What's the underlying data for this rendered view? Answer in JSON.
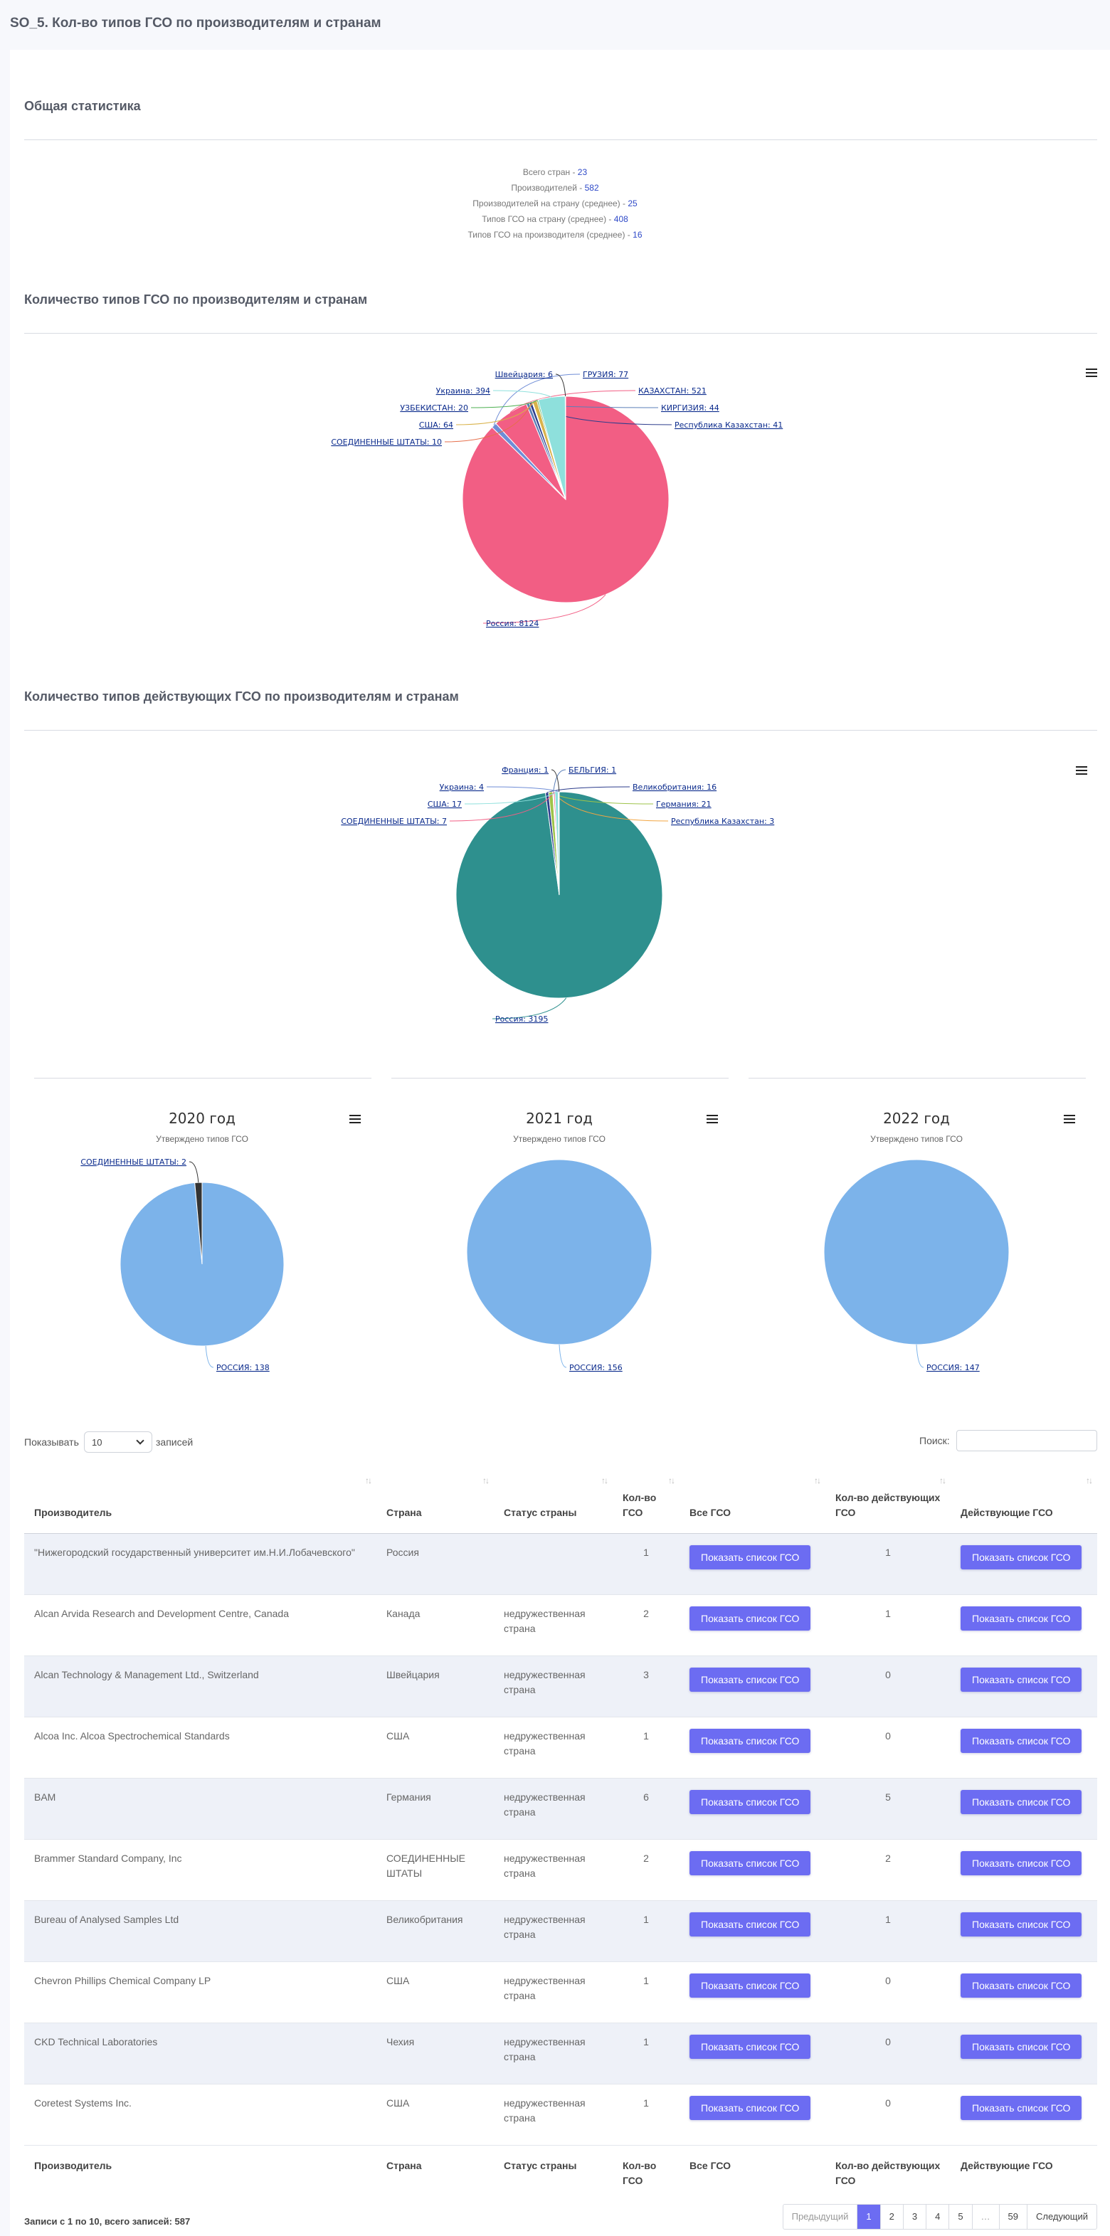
{
  "page": {
    "title": "SO_5. Кол-во типов ГСО по производителям и странам"
  },
  "stats": {
    "heading": "Общая статистика",
    "lines": [
      {
        "label": "Всего стран - ",
        "value": "23"
      },
      {
        "label": "Производителей - ",
        "value": "582"
      },
      {
        "label": "Производителей на страну (среднее) - ",
        "value": "25"
      },
      {
        "label": "Типов ГСО на страну (среднее) - ",
        "value": "408"
      },
      {
        "label": "Типов ГСО на производителя (среднее) - ",
        "value": "16"
      }
    ]
  },
  "colors": {
    "accent": "#6c6cf2",
    "russia_pie": "#f25e84",
    "russia_active_pie": "#2e908e",
    "year_pie": "#7cb3ea"
  },
  "chart_data": [
    {
      "type": "pie",
      "title": "Количество типов ГСО по производителям и странам",
      "slices": [
        {
          "label": "Россия",
          "value": 8124,
          "color": "#f25e84"
        },
        {
          "label": "ГРУЗИЯ",
          "value": 77,
          "color": "#6f8dd6"
        },
        {
          "label": "КАЗАХСТАН",
          "value": 521,
          "color": "#f25e84"
        },
        {
          "label": "КИРГИЗИЯ",
          "value": 44,
          "color": "#5b7fb8"
        },
        {
          "label": "Республика Казахстан",
          "value": 41,
          "color": "#2d3d8c"
        },
        {
          "label": "СОЕДИНЕННЫЕ ШТАТЫ",
          "value": 10,
          "color": "#e66e4a"
        },
        {
          "label": "США",
          "value": 64,
          "color": "#d9b24a"
        },
        {
          "label": "УЗБЕКИСТАН",
          "value": 20,
          "color": "#4caf50"
        },
        {
          "label": "Украина",
          "value": 394,
          "color": "#8ee0dc"
        },
        {
          "label": "Швейцария",
          "value": 6,
          "color": "#333333"
        }
      ]
    },
    {
      "type": "pie",
      "title": "Количество типов действующих ГСО по производителям и странам",
      "slices": [
        {
          "label": "Россия",
          "value": 3195,
          "color": "#2e908e"
        },
        {
          "label": "Великобритания",
          "value": 16,
          "color": "#2d3d8c"
        },
        {
          "label": "Германия",
          "value": 21,
          "color": "#9ec34a"
        },
        {
          "label": "Республика Казахстан",
          "value": 3,
          "color": "#f2a541"
        },
        {
          "label": "БЕЛЬГИЯ",
          "value": 1,
          "color": "#5b7fb8"
        },
        {
          "label": "СОЕДИНЕННЫЕ ШТАТЫ",
          "value": 7,
          "color": "#f25e84"
        },
        {
          "label": "США",
          "value": 17,
          "color": "#8ee0dc"
        },
        {
          "label": "Украина",
          "value": 4,
          "color": "#6f8dd6"
        },
        {
          "label": "Франция",
          "value": 1,
          "color": "#333333"
        }
      ]
    },
    {
      "type": "pie",
      "title": "2020 год",
      "subtitle": "Утверждено типов ГСО",
      "slices": [
        {
          "label": "РОССИЯ",
          "value": 138,
          "color": "#7cb3ea"
        },
        {
          "label": "СОЕДИНЕННЫЕ ШТАТЫ",
          "value": 2,
          "color": "#333333"
        }
      ]
    },
    {
      "type": "pie",
      "title": "2021 год",
      "subtitle": "Утверждено типов ГСО",
      "slices": [
        {
          "label": "РОССИЯ",
          "value": 156,
          "color": "#7cb3ea"
        }
      ]
    },
    {
      "type": "pie",
      "title": "2022 год",
      "subtitle": "Утверждено типов ГСО",
      "slices": [
        {
          "label": "РОССИЯ",
          "value": 147,
          "color": "#7cb3ea"
        }
      ]
    }
  ],
  "table_controls": {
    "show_label": "Показывать",
    "entries_value": "10",
    "entries_label": "записей",
    "search_label": "Поиск:"
  },
  "table": {
    "columns": [
      "Производитель",
      "Страна",
      "Статус страны",
      "Кол-во ГСО",
      "Все ГСО",
      "Кол-во действующих ГСО",
      "Действующие ГСО"
    ],
    "button_label": "Показать список ГСО",
    "rows": [
      {
        "maker": "\"Нижегородский государственный университет им.Н.И.Лобачевского\"",
        "country": "Россия",
        "status": "",
        "count": "1",
        "active": "1"
      },
      {
        "maker": "Alcan Arvida Research and Development Centre, Canada",
        "country": "Канада",
        "status": "недружественная страна",
        "count": "2",
        "active": "1"
      },
      {
        "maker": "Alcan Technology & Management Ltd., Switzerland",
        "country": "Швейцария",
        "status": "недружественная страна",
        "count": "3",
        "active": "0"
      },
      {
        "maker": "Alcoa Inc. Alcoa Spectrochemical Standards",
        "country": "США",
        "status": "недружественная страна",
        "count": "1",
        "active": "0"
      },
      {
        "maker": "BAM",
        "country": "Германия",
        "status": "недружественная страна",
        "count": "6",
        "active": "5"
      },
      {
        "maker": "Brammer Standard Company, Inc",
        "country": "СОЕДИНЕННЫЕ ШТАТЫ",
        "status": "недружественная страна",
        "count": "2",
        "active": "2"
      },
      {
        "maker": "Bureau of Analysed Samples Ltd",
        "country": "Великобритания",
        "status": "недружественная страна",
        "count": "1",
        "active": "1"
      },
      {
        "maker": "Chevron Phillips Chemical Company LP",
        "country": "США",
        "status": "недружественная страна",
        "count": "1",
        "active": "0"
      },
      {
        "maker": "CKD Technical Laboratories",
        "country": "Чехия",
        "status": "недружественная страна",
        "count": "1",
        "active": "0"
      },
      {
        "maker": "Coretest Systems Inc.",
        "country": "США",
        "status": "недружественная страна",
        "count": "1",
        "active": "0"
      }
    ]
  },
  "footer": {
    "info": "Записи с 1 по 10, всего записей: 587",
    "pager": {
      "prev": "Предыдущий",
      "pages": [
        "1",
        "2",
        "3",
        "4",
        "5",
        "…",
        "59"
      ],
      "next": "Следующий"
    }
  }
}
